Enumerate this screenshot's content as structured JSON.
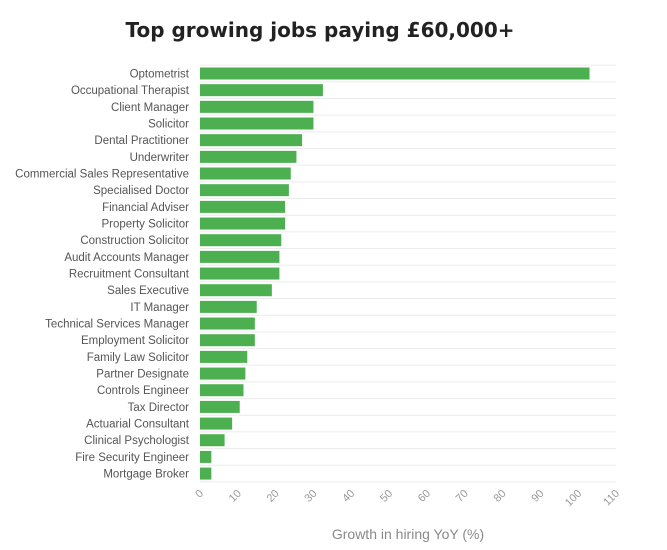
{
  "chart_data": {
    "type": "bar",
    "orientation": "horizontal",
    "title": "Top growing jobs paying £60,000+",
    "xlabel": "Growth in hiring YoY (%)",
    "ylabel": "",
    "xlim": [
      0,
      110
    ],
    "xticks": [
      0,
      10,
      20,
      30,
      40,
      50,
      60,
      70,
      80,
      90,
      100,
      110
    ],
    "grid": true,
    "legend": "none",
    "bar_color": "#4caf50",
    "categories": [
      "Optometrist",
      "Occupational Therapist",
      "Client Manager",
      "Solicitor",
      "Dental Practitioner",
      "Underwriter",
      "Commercial Sales Representative",
      "Specialised Doctor",
      "Financial Adviser",
      "Property Solicitor",
      "Construction Solicitor",
      "Audit Accounts Manager",
      "Recruitment Consultant",
      "Sales Executive",
      "IT Manager",
      "Technical Services Manager",
      "Employment Solicitor",
      "Family Law Solicitor",
      "Partner Designate",
      "Controls Engineer",
      "Tax Director",
      "Actuarial Consultant",
      "Clinical Psychologist",
      "Fire Security Engineer",
      "Mortgage Broker"
    ],
    "values": [
      103,
      32.5,
      30,
      30,
      27,
      25.5,
      24,
      23.5,
      22.5,
      22.5,
      21.5,
      21,
      21,
      19,
      15,
      14.5,
      14.5,
      12.5,
      12,
      11.5,
      10.5,
      8.5,
      6.5,
      3,
      3
    ]
  }
}
